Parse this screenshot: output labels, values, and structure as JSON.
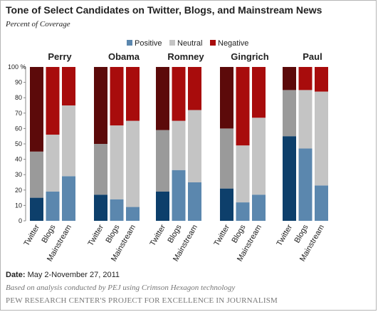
{
  "title": "Tone of Select Candidates on Twitter, Blogs, and Mainstream News",
  "subtitle": "Percent of Coverage",
  "footer": {
    "date_label": "Date:",
    "date_value": "May 2-November 27, 2011",
    "note": "Based on analysis conducted by PEJ using Crimson Hexagon technology",
    "source": "PEW RESEARCH CENTER'S PROJECT FOR EXCELLENCE IN JOURNALISM"
  },
  "colors": {
    "positive_dark": "#0d3f6b",
    "positive_light": "#5b87ae",
    "neutral_dark": "#9a9a9a",
    "neutral_light": "#c4c4c4",
    "negative_dark": "#5c0a0a",
    "negative_light": "#a80c0c",
    "axis": "#888888",
    "text": "#222222"
  },
  "chart_data": {
    "type": "bar",
    "stacked": true,
    "legend": [
      "Positive",
      "Neutral",
      "Negative"
    ],
    "legend_position": "top-center",
    "ylim": [
      0,
      100
    ],
    "yticks": [
      "0",
      "10",
      "20",
      "30",
      "40",
      "50",
      "60",
      "70",
      "80",
      "90",
      "100 %"
    ],
    "categories": [
      "Twitter",
      "Blogs",
      "Mainstream"
    ],
    "groups": [
      {
        "name": "Perry",
        "bars": [
          {
            "positive": 15,
            "neutral": 30,
            "negative": 55
          },
          {
            "positive": 19,
            "neutral": 37,
            "negative": 44
          },
          {
            "positive": 29,
            "neutral": 46,
            "negative": 25
          }
        ]
      },
      {
        "name": "Obama",
        "bars": [
          {
            "positive": 17,
            "neutral": 33,
            "negative": 50
          },
          {
            "positive": 14,
            "neutral": 48,
            "negative": 38
          },
          {
            "positive": 9,
            "neutral": 56,
            "negative": 35
          }
        ]
      },
      {
        "name": "Romney",
        "bars": [
          {
            "positive": 19,
            "neutral": 40,
            "negative": 41
          },
          {
            "positive": 33,
            "neutral": 32,
            "negative": 35
          },
          {
            "positive": 25,
            "neutral": 47,
            "negative": 28
          }
        ]
      },
      {
        "name": "Gingrich",
        "bars": [
          {
            "positive": 21,
            "neutral": 39,
            "negative": 40
          },
          {
            "positive": 12,
            "neutral": 37,
            "negative": 51
          },
          {
            "positive": 17,
            "neutral": 50,
            "negative": 33
          }
        ]
      },
      {
        "name": "Paul",
        "bars": [
          {
            "positive": 55,
            "neutral": 30,
            "negative": 15
          },
          {
            "positive": 47,
            "neutral": 38,
            "negative": 15
          },
          {
            "positive": 23,
            "neutral": 61,
            "negative": 16
          }
        ]
      }
    ]
  }
}
